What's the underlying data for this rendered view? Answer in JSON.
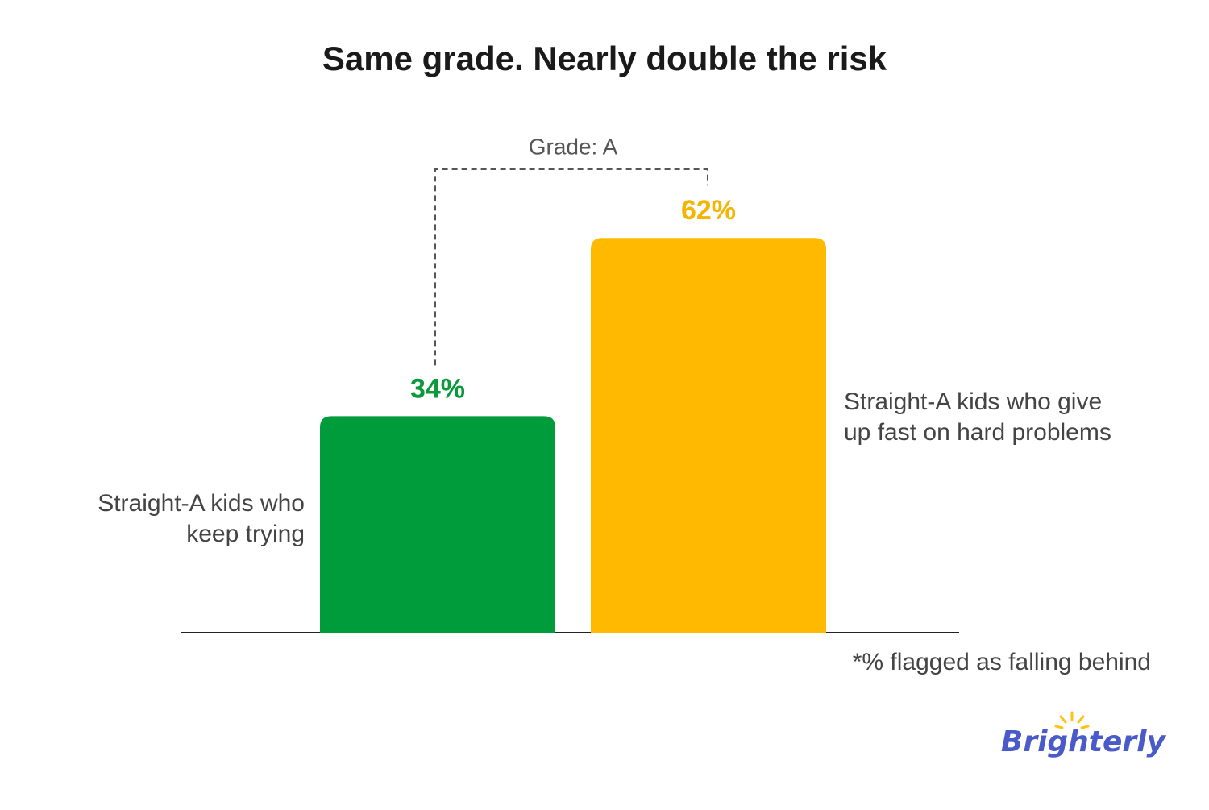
{
  "chart_data": {
    "type": "bar",
    "title": "Same grade. Nearly double the risk",
    "annotation": "Grade: A",
    "categories": [
      [
        "Straight-A kids who",
        "keep trying"
      ],
      [
        "Straight-A kids who give",
        "up fast on hard problems"
      ]
    ],
    "values": [
      34,
      62
    ],
    "value_labels": [
      "34%",
      "62%"
    ],
    "colors": [
      "#009c3b",
      "#ffba00"
    ],
    "label_colors": [
      "#0a9a3c",
      "#f5b400"
    ],
    "footnote": "*% flagged as falling behind",
    "logo": "Brighterly"
  }
}
